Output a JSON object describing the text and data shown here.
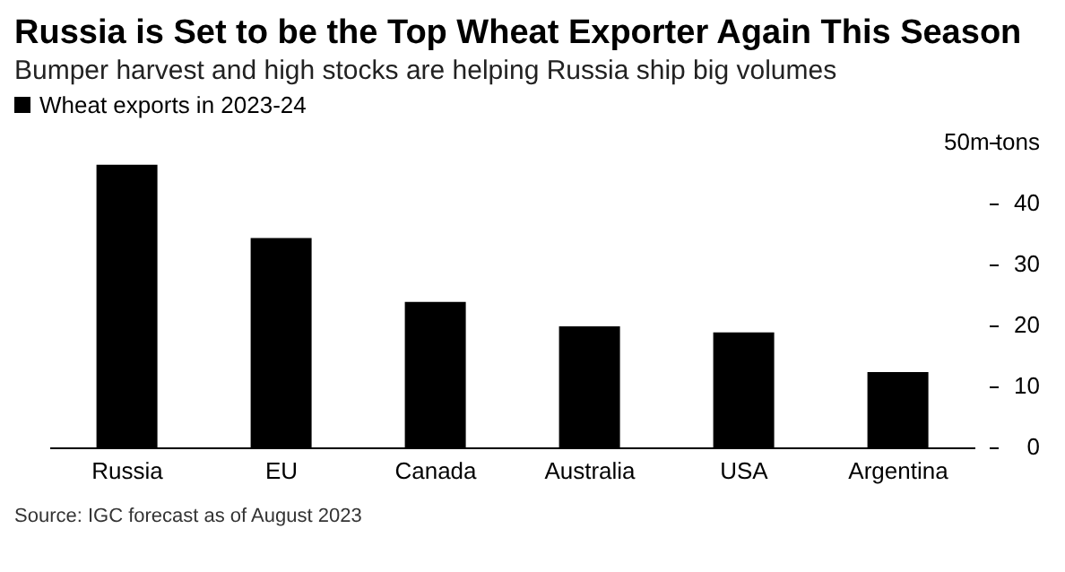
{
  "chart_data": {
    "type": "bar",
    "title": "Russia is Set to be the Top Wheat Exporter Again This Season",
    "subtitle": "Bumper harvest and high stocks are helping Russia ship big volumes",
    "categories": [
      "Russia",
      "EU",
      "Canada",
      "Australia",
      "USA",
      "Argentina"
    ],
    "series": [
      {
        "name": "Wheat exports in 2023-24",
        "color": "#000000",
        "values": [
          46.5,
          34.5,
          24,
          20,
          19,
          12.5
        ]
      }
    ],
    "ylim": [
      0,
      50
    ],
    "yticks": [
      0,
      10,
      20,
      30,
      40,
      {
        "value": 50,
        "label": "50m tons"
      }
    ],
    "legend": "top left",
    "annotations": [
      "Source: IGC forecast as of August 2023"
    ]
  }
}
